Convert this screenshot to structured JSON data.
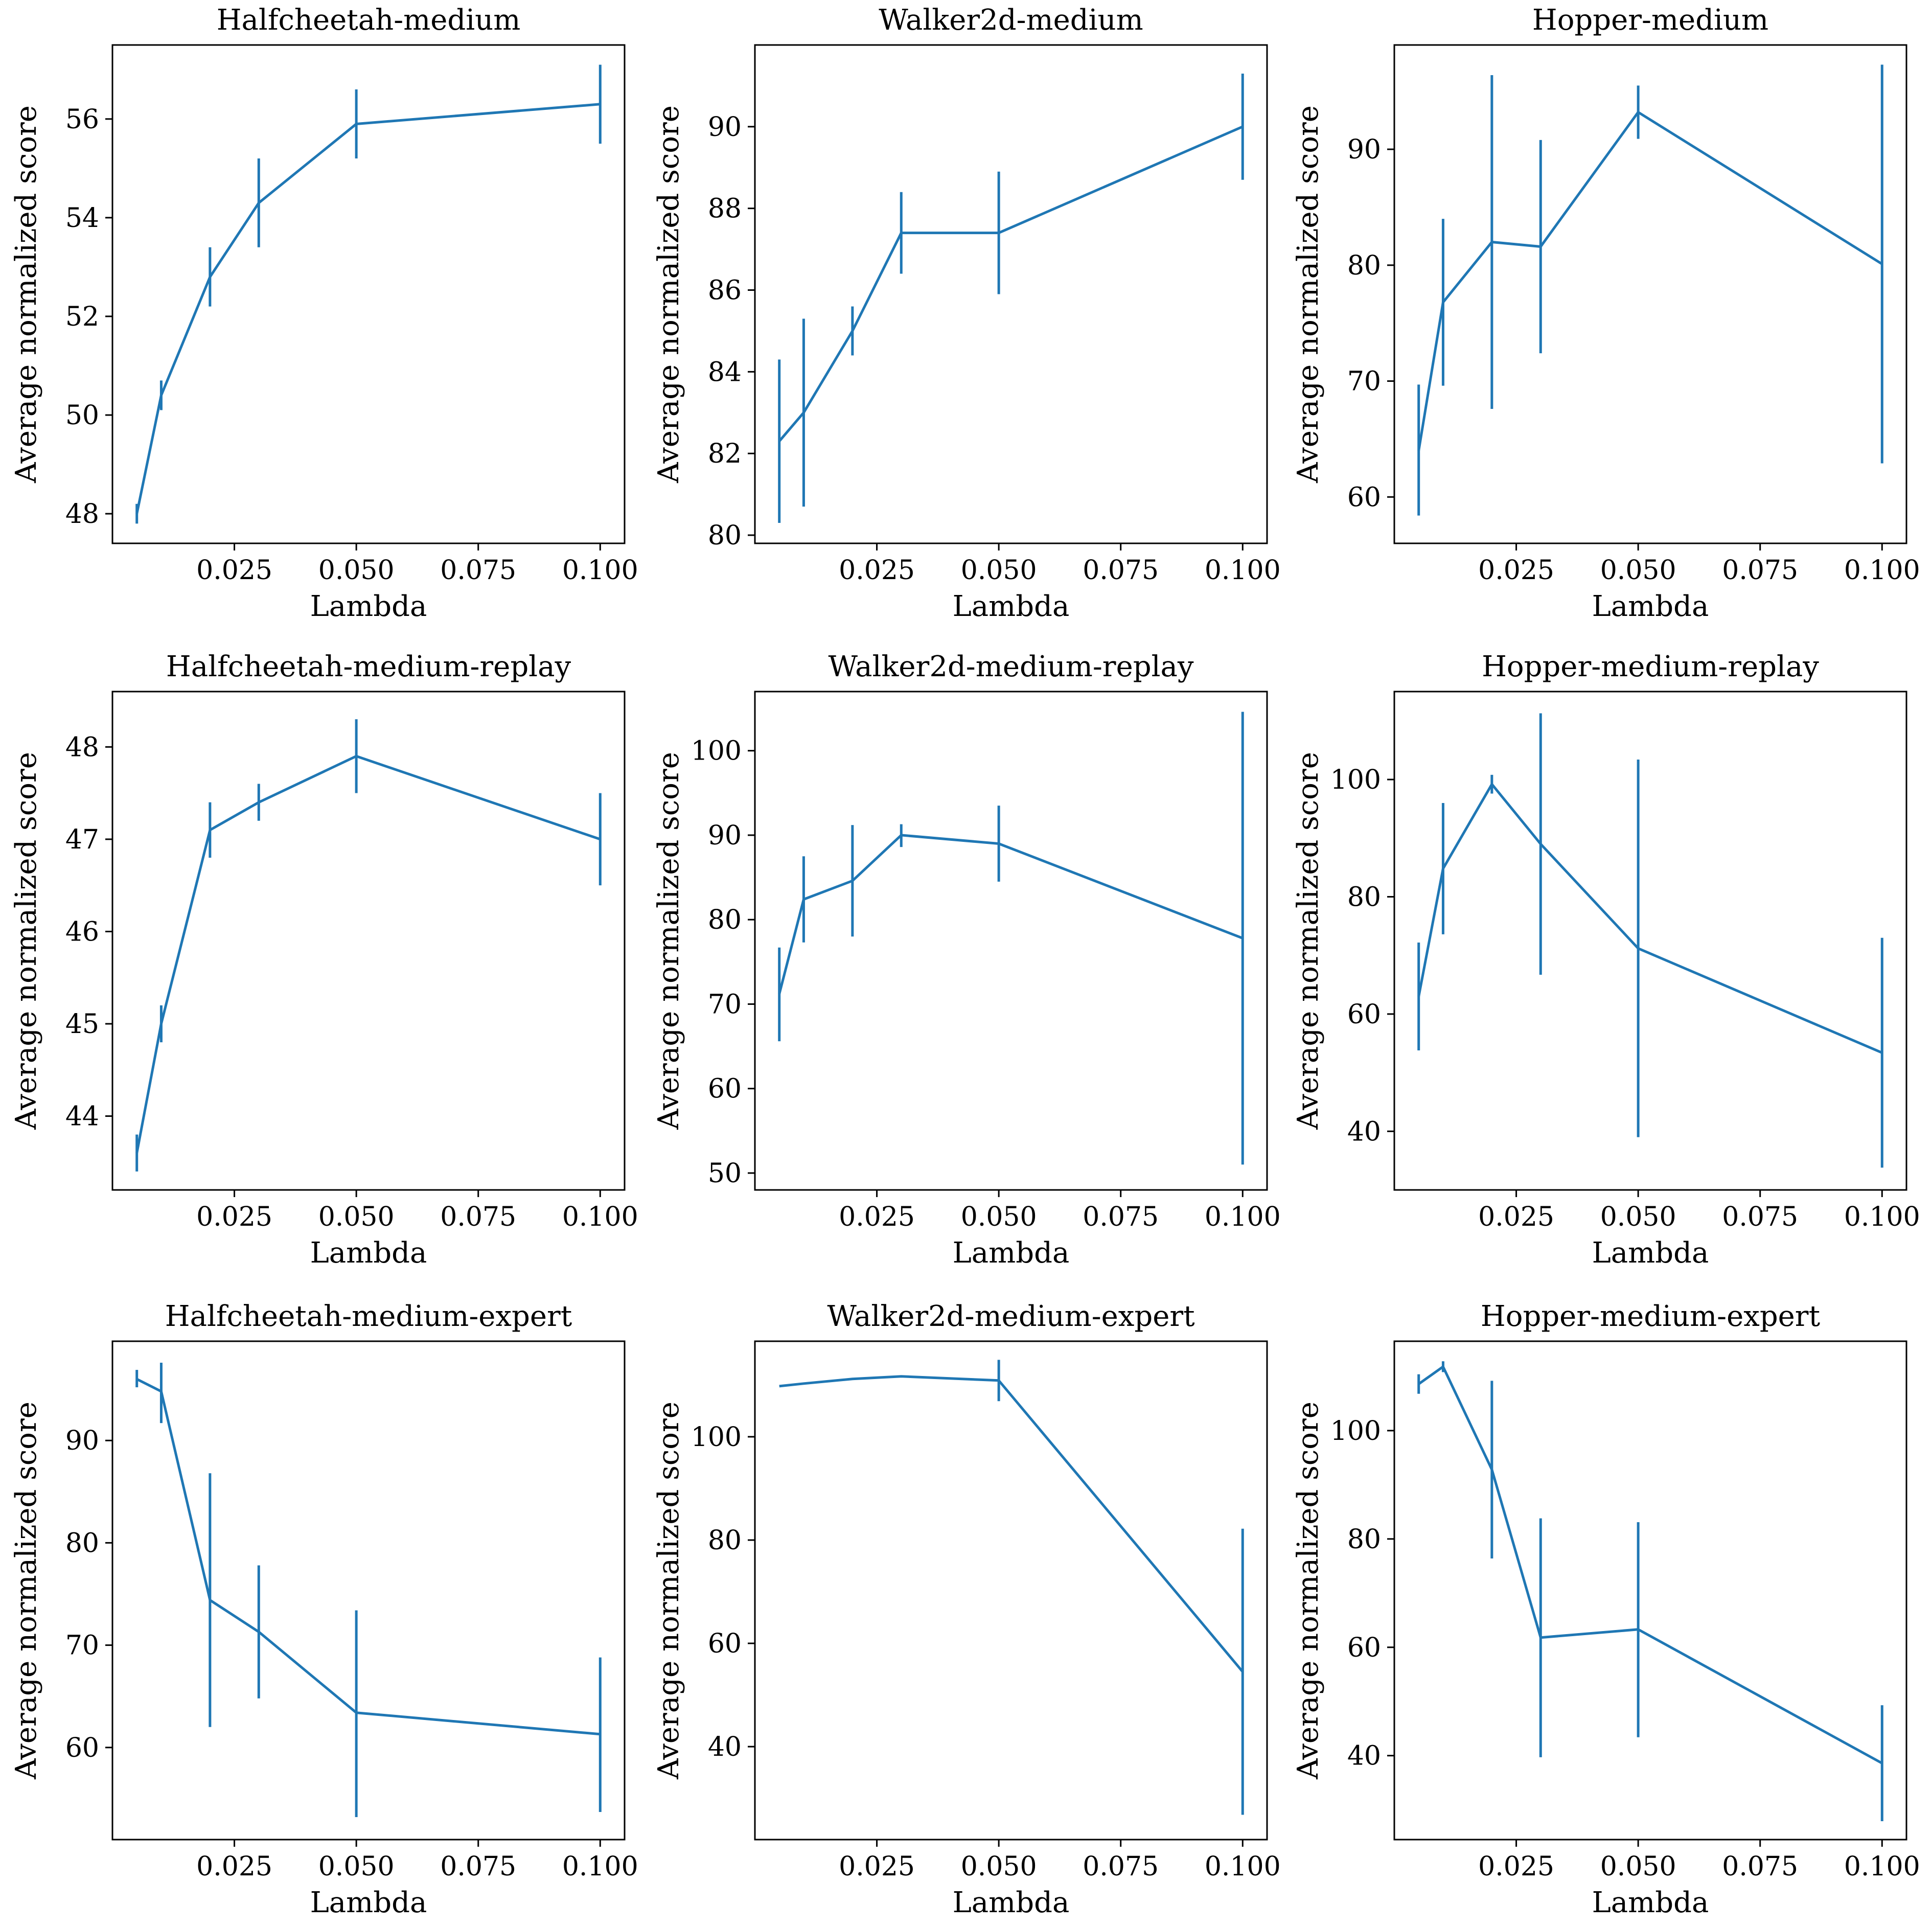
{
  "figure": {
    "series_color": "#1f77b4"
  },
  "chart_data": [
    {
      "type": "line",
      "title": "Halfcheetah-medium",
      "xlabel": "Lambda",
      "ylabel": "Average normalized score",
      "xlim": [
        0.0,
        0.105
      ],
      "ylim": [
        47.4,
        57.5
      ],
      "xticks": [
        0.025,
        0.05,
        0.075,
        0.1
      ],
      "xtick_labels": [
        "0.025",
        "0.050",
        "0.075",
        "0.100"
      ],
      "yticks": [
        48,
        50,
        52,
        54,
        56
      ],
      "ytick_labels": [
        "48",
        "50",
        "52",
        "54",
        "56"
      ],
      "grid": false,
      "series": [
        {
          "x": [
            0.005,
            0.01,
            0.02,
            0.03,
            0.05,
            0.1
          ],
          "y": [
            48.0,
            50.4,
            52.8,
            54.3,
            55.9,
            56.3
          ],
          "err_low": [
            47.8,
            50.1,
            52.2,
            53.4,
            55.2,
            55.5
          ],
          "err_high": [
            48.2,
            50.7,
            53.4,
            55.2,
            56.6,
            57.1
          ]
        }
      ]
    },
    {
      "type": "line",
      "title": "Walker2d-medium",
      "xlabel": "Lambda",
      "ylabel": "Average normalized score",
      "xlim": [
        0.0,
        0.105
      ],
      "ylim": [
        79.8,
        92.0
      ],
      "xticks": [
        0.025,
        0.05,
        0.075,
        0.1
      ],
      "xtick_labels": [
        "0.025",
        "0.050",
        "0.075",
        "0.100"
      ],
      "yticks": [
        80,
        82,
        84,
        86,
        88,
        90
      ],
      "ytick_labels": [
        "80",
        "82",
        "84",
        "86",
        "88",
        "90"
      ],
      "grid": false,
      "series": [
        {
          "x": [
            0.005,
            0.01,
            0.02,
            0.03,
            0.05,
            0.1
          ],
          "y": [
            82.3,
            83.0,
            85.0,
            87.4,
            87.4,
            90.0
          ],
          "err_low": [
            80.3,
            80.7,
            84.4,
            86.4,
            85.9,
            88.7
          ],
          "err_high": [
            84.3,
            85.3,
            85.6,
            88.4,
            88.9,
            91.3
          ]
        }
      ]
    },
    {
      "type": "line",
      "title": "Hopper-medium",
      "xlabel": "Lambda",
      "ylabel": "Average normalized score",
      "xlim": [
        0.0,
        0.105
      ],
      "ylim": [
        56.0,
        99.0
      ],
      "xticks": [
        0.025,
        0.05,
        0.075,
        0.1
      ],
      "xtick_labels": [
        "0.025",
        "0.050",
        "0.075",
        "0.100"
      ],
      "yticks": [
        60,
        70,
        80,
        90
      ],
      "ytick_labels": [
        "60",
        "70",
        "80",
        "90"
      ],
      "grid": false,
      "series": [
        {
          "x": [
            0.005,
            0.01,
            0.02,
            0.03,
            0.05,
            0.1
          ],
          "y": [
            64.0,
            76.8,
            82.0,
            81.6,
            93.2,
            80.1
          ],
          "err_low": [
            58.4,
            69.6,
            67.6,
            72.4,
            90.9,
            62.9
          ],
          "err_high": [
            69.7,
            84.0,
            96.4,
            90.8,
            95.5,
            97.3
          ]
        }
      ]
    },
    {
      "type": "line",
      "title": "Halfcheetah-medium-replay",
      "xlabel": "Lambda",
      "ylabel": "Average normalized score",
      "xlim": [
        0.0,
        0.105
      ],
      "ylim": [
        43.2,
        48.6
      ],
      "xticks": [
        0.025,
        0.05,
        0.075,
        0.1
      ],
      "xtick_labels": [
        "0.025",
        "0.050",
        "0.075",
        "0.100"
      ],
      "yticks": [
        44,
        45,
        46,
        47,
        48
      ],
      "ytick_labels": [
        "44",
        "45",
        "46",
        "47",
        "48"
      ],
      "grid": false,
      "series": [
        {
          "x": [
            0.005,
            0.01,
            0.02,
            0.03,
            0.05,
            0.1
          ],
          "y": [
            43.6,
            45.0,
            47.1,
            47.4,
            47.9,
            47.0
          ],
          "err_low": [
            43.4,
            44.8,
            46.8,
            47.2,
            47.5,
            46.5
          ],
          "err_high": [
            43.8,
            45.2,
            47.4,
            47.6,
            48.3,
            47.5
          ]
        }
      ]
    },
    {
      "type": "line",
      "title": "Walker2d-medium-replay",
      "xlabel": "Lambda",
      "ylabel": "Average normalized score",
      "xlim": [
        0.0,
        0.105
      ],
      "ylim": [
        48.0,
        107.0
      ],
      "xticks": [
        0.025,
        0.05,
        0.075,
        0.1
      ],
      "xtick_labels": [
        "0.025",
        "0.050",
        "0.075",
        "0.100"
      ],
      "yticks": [
        50,
        60,
        70,
        80,
        90,
        100
      ],
      "ytick_labels": [
        "50",
        "60",
        "70",
        "80",
        "90",
        "100"
      ],
      "grid": false,
      "series": [
        {
          "x": [
            0.005,
            0.01,
            0.02,
            0.03,
            0.05,
            0.1
          ],
          "y": [
            71.2,
            82.4,
            84.6,
            90.0,
            89.0,
            77.8
          ],
          "err_low": [
            65.6,
            77.3,
            78.0,
            88.6,
            84.5,
            51.0
          ],
          "err_high": [
            76.7,
            87.5,
            91.2,
            91.3,
            93.5,
            104.6
          ]
        }
      ]
    },
    {
      "type": "line",
      "title": "Hopper-medium-replay",
      "xlabel": "Lambda",
      "ylabel": "Average normalized score",
      "xlim": [
        0.0,
        0.105
      ],
      "ylim": [
        30.0,
        115.0
      ],
      "xticks": [
        0.025,
        0.05,
        0.075,
        0.1
      ],
      "xtick_labels": [
        "0.025",
        "0.050",
        "0.075",
        "0.100"
      ],
      "yticks": [
        40,
        60,
        80,
        100
      ],
      "ytick_labels": [
        "40",
        "60",
        "80",
        "100"
      ],
      "grid": false,
      "series": [
        {
          "x": [
            0.005,
            0.01,
            0.02,
            0.03,
            0.05,
            0.1
          ],
          "y": [
            63.0,
            84.8,
            99.2,
            89.0,
            71.2,
            53.4
          ],
          "err_low": [
            53.8,
            73.6,
            97.6,
            66.7,
            39.0,
            33.8
          ],
          "err_high": [
            72.2,
            96.0,
            100.8,
            111.3,
            103.4,
            73.0
          ]
        }
      ]
    },
    {
      "type": "line",
      "title": "Halfcheetah-medium-expert",
      "xlabel": "Lambda",
      "ylabel": "Average normalized score",
      "xlim": [
        0.0,
        0.105
      ],
      "ylim": [
        51.0,
        99.7
      ],
      "xticks": [
        0.025,
        0.05,
        0.075,
        0.1
      ],
      "xtick_labels": [
        "0.025",
        "0.050",
        "0.075",
        "0.100"
      ],
      "yticks": [
        60,
        70,
        80,
        90
      ],
      "ytick_labels": [
        "60",
        "70",
        "80",
        "90"
      ],
      "grid": false,
      "series": [
        {
          "x": [
            0.005,
            0.01,
            0.02,
            0.03,
            0.05,
            0.1
          ],
          "y": [
            96.0,
            94.8,
            74.4,
            71.3,
            63.4,
            61.3
          ],
          "err_low": [
            95.2,
            91.7,
            62.0,
            64.8,
            53.2,
            53.7
          ],
          "err_high": [
            96.9,
            97.6,
            86.8,
            77.8,
            73.4,
            68.8
          ]
        }
      ]
    },
    {
      "type": "line",
      "title": "Walker2d-medium-expert",
      "xlabel": "Lambda",
      "ylabel": "Average normalized score",
      "xlim": [
        0.0,
        0.105
      ],
      "ylim": [
        22.0,
        118.5
      ],
      "xticks": [
        0.025,
        0.05,
        0.075,
        0.1
      ],
      "xtick_labels": [
        "0.025",
        "0.050",
        "0.075",
        "0.100"
      ],
      "yticks": [
        40,
        60,
        80,
        100
      ],
      "ytick_labels": [
        "40",
        "60",
        "80",
        "100"
      ],
      "grid": false,
      "series": [
        {
          "x": [
            0.005,
            0.01,
            0.02,
            0.03,
            0.05,
            0.1
          ],
          "y": [
            109.8,
            110.3,
            111.2,
            111.7,
            110.9,
            54.5
          ],
          "err_low": [
            109.8,
            110.3,
            111.2,
            111.7,
            106.9,
            26.8
          ],
          "err_high": [
            109.8,
            110.3,
            111.2,
            111.7,
            114.9,
            82.2
          ]
        }
      ]
    },
    {
      "type": "line",
      "title": "Hopper-medium-expert",
      "xlabel": "Lambda",
      "ylabel": "Average normalized score",
      "xlim": [
        0.0,
        0.105
      ],
      "ylim": [
        24.5,
        116.5
      ],
      "xticks": [
        0.025,
        0.05,
        0.075,
        0.1
      ],
      "xtick_labels": [
        "0.025",
        "0.050",
        "0.075",
        "0.100"
      ],
      "yticks": [
        40,
        60,
        80,
        100
      ],
      "ytick_labels": [
        "40",
        "60",
        "80",
        "100"
      ],
      "grid": false,
      "series": [
        {
          "x": [
            0.005,
            0.01,
            0.02,
            0.03,
            0.05,
            0.1
          ],
          "y": [
            108.6,
            111.8,
            92.8,
            61.8,
            63.3,
            38.6
          ],
          "err_low": [
            106.8,
            110.8,
            76.4,
            39.7,
            43.4,
            27.9
          ],
          "err_high": [
            110.4,
            112.8,
            109.2,
            83.8,
            83.1,
            49.3
          ]
        }
      ]
    }
  ]
}
